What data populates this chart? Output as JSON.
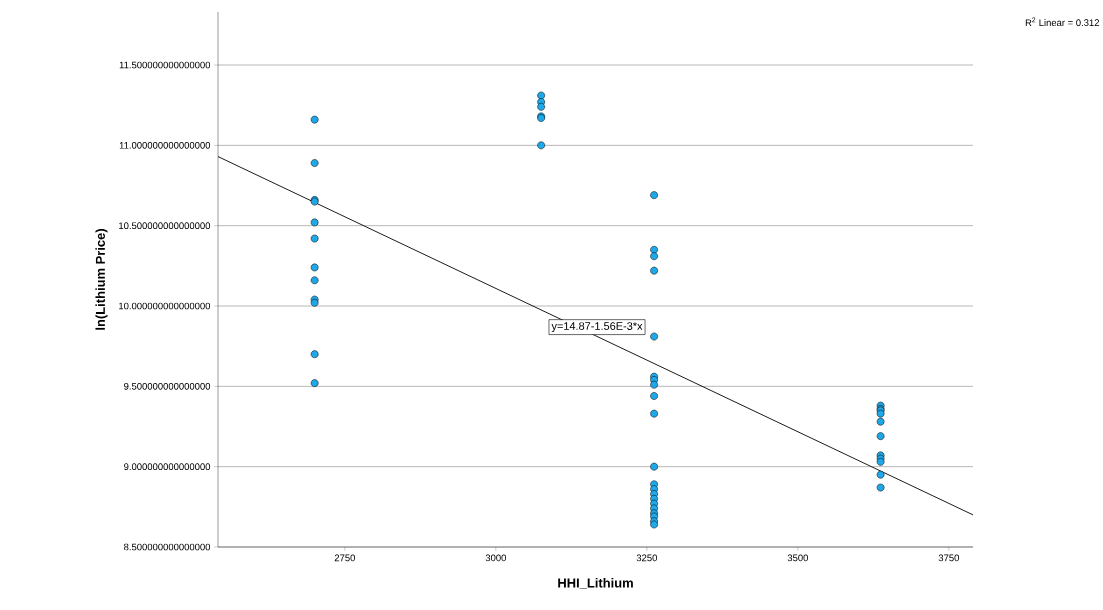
{
  "chart_data": {
    "type": "scatter",
    "xlabel": "HHI_Lithium",
    "ylabel": "ln(Lithium Price)",
    "xlim": [
      2540,
      3790
    ],
    "ylim": [
      8.5,
      11.83
    ],
    "xticks": [
      2750,
      3000,
      3250,
      3500,
      3750
    ],
    "yticks": [
      {
        "value": 8.5,
        "label": "8.500000000000000"
      },
      {
        "value": 9.0,
        "label": "9.000000000000000"
      },
      {
        "value": 9.5,
        "label": "9.500000000000000"
      },
      {
        "value": 10.0,
        "label": "10.000000000000000"
      },
      {
        "value": 10.5,
        "label": "10.500000000000000"
      },
      {
        "value": 11.0,
        "label": "11.000000000000000"
      },
      {
        "value": 11.5,
        "label": "11.500000000000000"
      }
    ],
    "grid": "y",
    "marker": "circle",
    "series": [
      {
        "color": "#1fa8e8",
        "x": [
          2700,
          2700,
          2700,
          2700,
          2700,
          2700,
          2700,
          2700,
          2700,
          2700,
          2700,
          2700,
          3075,
          3075,
          3075,
          3075,
          3075,
          3075,
          3262,
          3262,
          3262,
          3262,
          3262,
          3262,
          3262,
          3262,
          3262,
          3262,
          3262,
          3262,
          3262,
          3262,
          3262,
          3262,
          3262,
          3262,
          3262,
          3262,
          3262,
          3637,
          3637,
          3637,
          3637,
          3637,
          3637,
          3637,
          3637,
          3637,
          3637,
          3637
        ],
        "values": [
          11.16,
          10.89,
          10.66,
          10.65,
          10.52,
          10.42,
          10.24,
          10.16,
          10.04,
          10.02,
          9.7,
          9.52,
          11.31,
          11.27,
          11.24,
          11.18,
          11.17,
          11.0,
          10.69,
          10.35,
          10.31,
          10.22,
          9.81,
          9.56,
          9.54,
          9.51,
          9.44,
          9.33,
          9.0,
          8.89,
          8.86,
          8.83,
          8.8,
          8.77,
          8.74,
          8.71,
          8.69,
          8.66,
          8.64,
          9.38,
          9.36,
          9.35,
          9.33,
          9.28,
          9.19,
          9.07,
          9.05,
          9.03,
          8.95,
          8.87
        ]
      },
      {
        "type": "line",
        "color": "#000000",
        "marker": "none",
        "x": [
          2540,
          3790
        ],
        "values": [
          10.93,
          8.7
        ]
      }
    ],
    "annotations": [
      "y=14.87-1.56E-3*x",
      "R$^{2}$ Linear = 0.312"
    ]
  }
}
